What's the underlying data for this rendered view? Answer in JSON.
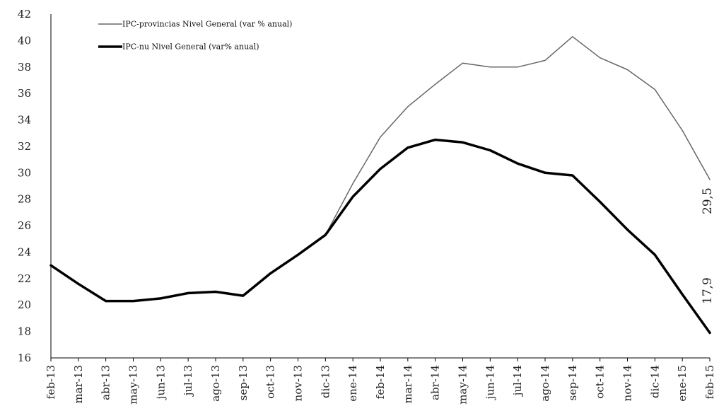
{
  "chart_data": {
    "type": "line",
    "categories": [
      "feb-13",
      "mar-13",
      "abr-13",
      "may-13",
      "jun-13",
      "jul-13",
      "ago-13",
      "sep-13",
      "oct-13",
      "nov-13",
      "dic-13",
      "ene-14",
      "feb-14",
      "mar-14",
      "abr-14",
      "may-14",
      "jun-14",
      "jul-14",
      "ago-14",
      "sep-14",
      "oct-14",
      "nov-14",
      "dic-14",
      "ene-15",
      "feb-15"
    ],
    "series": [
      {
        "name": "IPC-provincias Nivel General (var % anual)",
        "color": "#666666",
        "values": [
          23.0,
          21.6,
          20.3,
          20.3,
          20.5,
          20.9,
          21.0,
          20.7,
          22.4,
          23.8,
          25.3,
          29.2,
          32.7,
          35.0,
          36.7,
          38.3,
          38.0,
          38.0,
          38.5,
          40.3,
          38.7,
          37.8,
          36.3,
          33.2,
          29.5
        ]
      },
      {
        "name": "IPC-nu Nivel General (var% anual)",
        "color": "#000000",
        "values": [
          23.0,
          21.6,
          20.3,
          20.3,
          20.5,
          20.9,
          21.0,
          20.7,
          22.4,
          23.8,
          25.3,
          28.2,
          30.3,
          31.9,
          32.5,
          32.3,
          31.7,
          30.7,
          30.0,
          29.8,
          27.8,
          25.7,
          23.8,
          20.8,
          17.9
        ]
      }
    ],
    "data_labels": [
      "29,5",
      "17,9"
    ],
    "ylim": [
      16,
      42
    ],
    "yticks": [
      "16",
      "18",
      "20",
      "22",
      "24",
      "26",
      "28",
      "30",
      "32",
      "34",
      "36",
      "38",
      "40",
      "42"
    ],
    "grid": false,
    "legend_position": "top-left"
  }
}
